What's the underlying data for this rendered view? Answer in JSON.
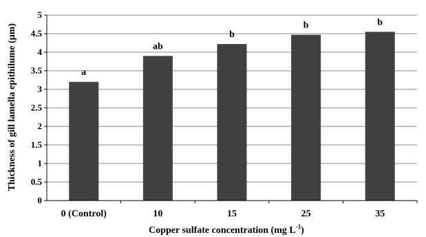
{
  "chart_data": {
    "type": "bar",
    "categories": [
      "0 (Control)",
      "10",
      "15",
      "25",
      "35"
    ],
    "values": [
      3.2,
      3.9,
      4.22,
      4.47,
      4.55
    ],
    "labels": [
      "a",
      "ab",
      "b",
      "b",
      "b"
    ],
    "ylabel": "Thickness of gill lamella epithilume (µm)",
    "xlabel": {
      "main": "Copper sulfate concentration (mg L",
      "sup": "-1",
      "close": ")"
    },
    "y_ticks": [
      "0",
      "0.5",
      "1",
      "1.5",
      "2",
      "2.5",
      "3",
      "3.5",
      "4",
      "4.5",
      "5"
    ],
    "ylim": [
      0,
      5
    ],
    "grid": true,
    "legend": "none",
    "colors": {
      "bar": "#404040",
      "grid": "#888888",
      "axis": "#000000"
    }
  }
}
